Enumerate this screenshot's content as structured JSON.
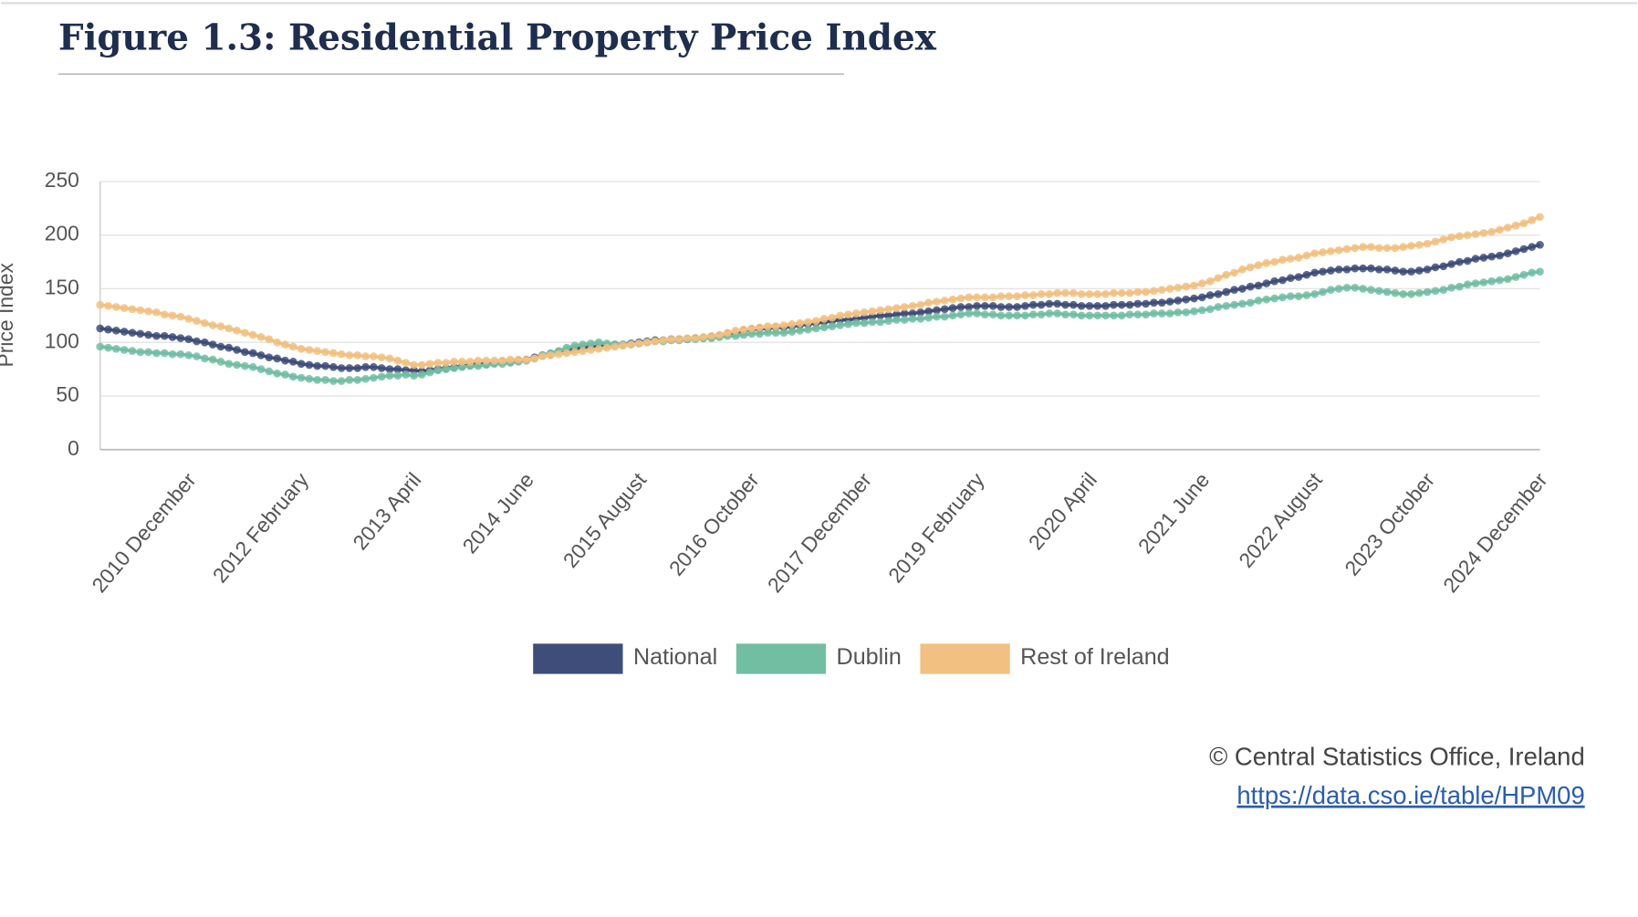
{
  "chart_data": {
    "type": "line",
    "title": "Figure 1.3: Residential Property Price Index",
    "y_label": "Price Index",
    "source": "© Central Statistics Office, Ireland",
    "source_url": "https://data.cso.ie/table/HPM09",
    "ylim": [
      0,
      250
    ],
    "yticks": [
      0,
      50,
      100,
      150,
      200,
      250
    ],
    "grid": true,
    "legend": "bottom",
    "categories": [
      null,
      null,
      null,
      null,
      null,
      null,
      null,
      null,
      null,
      null,
      null,
      "2010 December",
      null,
      null,
      null,
      null,
      null,
      null,
      null,
      null,
      null,
      null,
      null,
      null,
      null,
      "2012 February",
      null,
      null,
      null,
      null,
      null,
      null,
      null,
      null,
      null,
      null,
      null,
      null,
      null,
      "2013 April",
      null,
      null,
      null,
      null,
      null,
      null,
      null,
      null,
      null,
      null,
      null,
      null,
      null,
      "2014 June",
      null,
      null,
      null,
      null,
      null,
      null,
      null,
      null,
      null,
      null,
      null,
      null,
      null,
      "2015 August",
      null,
      null,
      null,
      null,
      null,
      null,
      null,
      null,
      null,
      null,
      null,
      null,
      null,
      "2016 October",
      null,
      null,
      null,
      null,
      null,
      null,
      null,
      null,
      null,
      null,
      null,
      null,
      null,
      "2017 December",
      null,
      null,
      null,
      null,
      null,
      null,
      null,
      null,
      null,
      null,
      null,
      null,
      null,
      "2019 February",
      null,
      null,
      null,
      null,
      null,
      null,
      null,
      null,
      null,
      null,
      null,
      null,
      null,
      "2020 April",
      null,
      null,
      null,
      null,
      null,
      null,
      null,
      null,
      null,
      null,
      null,
      null,
      null,
      "2021 June",
      null,
      null,
      null,
      null,
      null,
      null,
      null,
      null,
      null,
      null,
      null,
      null,
      null,
      "2022 August",
      null,
      null,
      null,
      null,
      null,
      null,
      null,
      null,
      null,
      null,
      null,
      null,
      null,
      "2023 October",
      null,
      null,
      null,
      null,
      null,
      null,
      null,
      null,
      null,
      null,
      null,
      null,
      null,
      "2024 December"
    ],
    "series": [
      {
        "name": "National",
        "color": "#3f4d7a",
        "values": [
          113,
          112,
          111,
          110,
          109,
          108,
          107,
          106,
          106,
          105,
          104,
          103,
          101,
          100,
          98,
          96,
          95,
          93,
          91,
          90,
          88,
          86,
          85,
          83,
          82,
          80,
          79,
          78,
          78,
          77,
          76,
          76,
          76,
          77,
          77,
          76,
          75,
          75,
          74,
          74,
          73,
          74,
          75,
          76,
          77,
          78,
          79,
          80,
          80,
          81,
          82,
          82,
          83,
          84,
          86,
          88,
          89,
          91,
          93,
          94,
          95,
          96,
          96,
          97,
          98,
          98,
          99,
          100,
          101,
          102,
          102,
          103,
          103,
          103,
          104,
          104,
          105,
          106,
          108,
          109,
          111,
          112,
          113,
          113,
          114,
          114,
          115,
          116,
          117,
          118,
          119,
          120,
          121,
          121,
          122,
          123,
          124,
          125,
          125,
          126,
          127,
          127,
          128,
          129,
          130,
          131,
          132,
          133,
          133,
          134,
          134,
          134,
          133,
          133,
          133,
          134,
          135,
          135,
          136,
          136,
          135,
          135,
          134,
          134,
          134,
          134,
          135,
          135,
          135,
          136,
          136,
          137,
          137,
          138,
          139,
          140,
          141,
          142,
          144,
          145,
          147,
          149,
          150,
          152,
          153,
          155,
          157,
          158,
          160,
          161,
          163,
          165,
          166,
          167,
          168,
          168,
          169,
          169,
          169,
          168,
          168,
          167,
          166,
          166,
          167,
          168,
          170,
          171,
          173,
          175,
          176,
          178,
          179,
          180,
          181,
          183,
          185,
          187,
          189,
          191
        ]
      },
      {
        "name": "Dublin",
        "color": "#72bea2",
        "values": [
          96,
          95,
          94,
          93,
          92,
          91,
          91,
          90,
          90,
          89,
          89,
          88,
          87,
          85,
          84,
          82,
          80,
          79,
          78,
          77,
          75,
          73,
          71,
          70,
          68,
          67,
          66,
          65,
          65,
          64,
          64,
          65,
          65,
          66,
          67,
          68,
          69,
          69,
          70,
          69,
          70,
          72,
          74,
          75,
          76,
          77,
          78,
          78,
          79,
          80,
          80,
          81,
          82,
          83,
          85,
          88,
          90,
          92,
          95,
          97,
          98,
          99,
          100,
          99,
          98,
          98,
          98,
          99,
          100,
          101,
          101,
          102,
          102,
          103,
          103,
          104,
          104,
          105,
          106,
          106,
          107,
          108,
          108,
          109,
          109,
          109,
          110,
          111,
          112,
          113,
          114,
          115,
          116,
          117,
          118,
          118,
          119,
          119,
          120,
          121,
          121,
          122,
          122,
          123,
          124,
          124,
          125,
          126,
          127,
          127,
          126,
          126,
          125,
          125,
          125,
          125,
          126,
          126,
          127,
          127,
          126,
          126,
          125,
          125,
          125,
          125,
          125,
          125,
          126,
          126,
          126,
          127,
          127,
          127,
          128,
          128,
          129,
          130,
          131,
          133,
          134,
          135,
          136,
          137,
          139,
          140,
          141,
          142,
          143,
          143,
          144,
          145,
          147,
          149,
          150,
          151,
          151,
          150,
          149,
          148,
          147,
          146,
          145,
          145,
          146,
          147,
          148,
          149,
          151,
          152,
          154,
          155,
          156,
          157,
          158,
          159,
          161,
          163,
          165,
          166
        ]
      },
      {
        "name": "Rest of Ireland",
        "color": "#f2c080",
        "values": [
          135,
          134,
          133,
          132,
          131,
          130,
          129,
          128,
          126,
          125,
          124,
          122,
          120,
          118,
          116,
          115,
          113,
          111,
          109,
          107,
          105,
          103,
          100,
          98,
          96,
          94,
          93,
          92,
          91,
          90,
          89,
          88,
          88,
          87,
          87,
          86,
          85,
          83,
          81,
          79,
          79,
          80,
          81,
          81,
          82,
          82,
          82,
          83,
          83,
          83,
          83,
          84,
          84,
          84,
          85,
          87,
          88,
          89,
          90,
          91,
          92,
          93,
          94,
          95,
          96,
          97,
          98,
          99,
          100,
          101,
          102,
          103,
          103,
          104,
          104,
          105,
          106,
          107,
          109,
          111,
          112,
          113,
          114,
          115,
          115,
          116,
          117,
          118,
          119,
          120,
          122,
          123,
          125,
          126,
          127,
          128,
          129,
          130,
          131,
          132,
          133,
          134,
          135,
          137,
          138,
          139,
          140,
          141,
          142,
          142,
          142,
          142,
          143,
          143,
          143,
          144,
          144,
          145,
          145,
          146,
          146,
          146,
          145,
          145,
          145,
          145,
          146,
          146,
          146,
          147,
          147,
          148,
          149,
          150,
          151,
          152,
          153,
          155,
          157,
          160,
          163,
          165,
          168,
          170,
          172,
          174,
          175,
          177,
          178,
          179,
          181,
          183,
          184,
          185,
          186,
          187,
          188,
          189,
          189,
          188,
          188,
          188,
          189,
          190,
          191,
          192,
          194,
          196,
          198,
          199,
          200,
          201,
          202,
          203,
          205,
          207,
          209,
          211,
          214,
          217
        ]
      }
    ]
  }
}
